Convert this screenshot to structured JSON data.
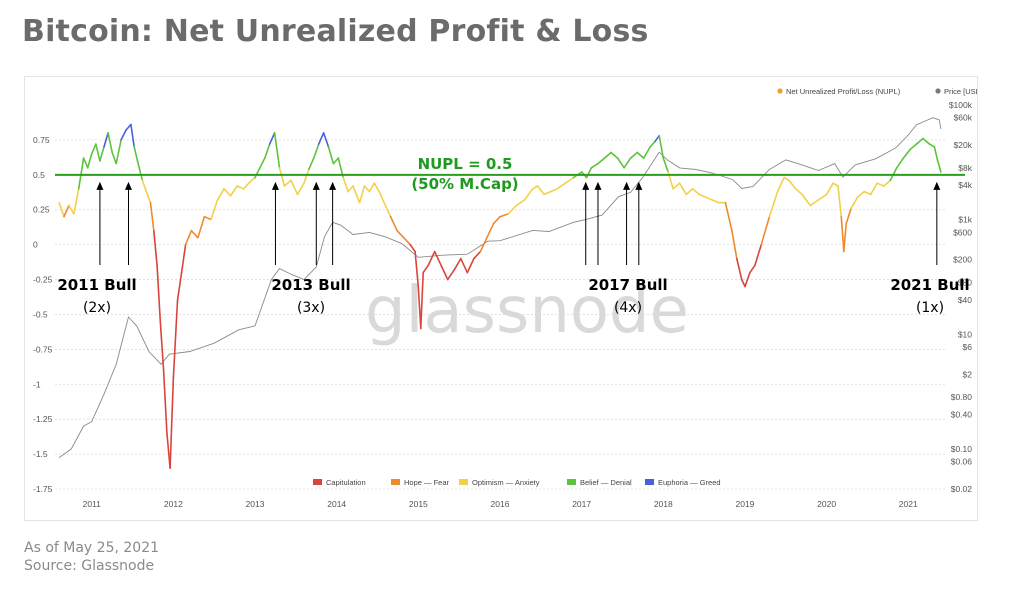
{
  "title": "Bitcoin: Net Unrealized Profit & Loss",
  "footer": {
    "date": "As of May 25, 2021",
    "source": "Source: Glassnode"
  },
  "watermark": "glassnode",
  "chart_data": {
    "type": "line",
    "legend_top": [
      {
        "label": "Net Unrealized Profit/Loss (NUPL)",
        "color": "#f39c34"
      },
      {
        "label": "Price [USD]",
        "color": "#7a7a7a"
      }
    ],
    "legend_bottom": [
      {
        "label": "Capitulation",
        "color": "#d9453b"
      },
      {
        "label": "Hope — Fear",
        "color": "#ef8a2a"
      },
      {
        "label": "Optimism — Anxiety",
        "color": "#f2d04a"
      },
      {
        "label": "Belief — Denial",
        "color": "#5cc33c"
      },
      {
        "label": "Euphoria — Greed",
        "color": "#4a5fe0"
      }
    ],
    "x_ticks": [
      "2011",
      "2012",
      "2013",
      "2014",
      "2015",
      "2016",
      "2017",
      "2018",
      "2019",
      "2020",
      "2021"
    ],
    "y_left": {
      "ticks": [
        "0.75",
        "0.5",
        "0.25",
        "0",
        "-0.25",
        "-0.5",
        "-0.75",
        "-1",
        "-1.25",
        "-1.5",
        "-1.75"
      ],
      "range": [
        -1.75,
        1.0
      ]
    },
    "y_right": {
      "scale": "log",
      "ticks": [
        "$100k",
        "$60k",
        "$20k",
        "$8k",
        "$4k",
        "$1k",
        "$600",
        "$200",
        "$80",
        "$40",
        "$10",
        "$6",
        "$2",
        "$0.80",
        "$0.40",
        "$0.10",
        "$0.06",
        "$0.02"
      ]
    },
    "reference_line": {
      "value": 0.5,
      "color": "#2a9d1f",
      "label": "NUPL = 0.5",
      "sublabel": "(50% M.Cap)"
    },
    "annotations": [
      {
        "label": "2011 Bull",
        "sub": "(2x)",
        "peaks": [
          2011.1,
          2011.45
        ]
      },
      {
        "label": "2013 Bull",
        "sub": "(3x)",
        "peaks": [
          2013.25,
          2013.75,
          2013.95
        ]
      },
      {
        "label": "2017 Bull",
        "sub": "(4x)",
        "peaks": [
          2017.05,
          2017.2,
          2017.55,
          2017.7
        ]
      },
      {
        "label": "2021 Bull",
        "sub": "(1x)",
        "peaks": [
          2021.35
        ]
      }
    ],
    "nupl_series": [
      [
        2010.6,
        0.3
      ],
      [
        2010.66,
        0.2
      ],
      [
        2010.72,
        0.28
      ],
      [
        2010.78,
        0.22
      ],
      [
        2010.84,
        0.4
      ],
      [
        2010.9,
        0.62
      ],
      [
        2010.95,
        0.55
      ],
      [
        2011.0,
        0.65
      ],
      [
        2011.05,
        0.72
      ],
      [
        2011.1,
        0.6
      ],
      [
        2011.15,
        0.7
      ],
      [
        2011.2,
        0.8
      ],
      [
        2011.25,
        0.66
      ],
      [
        2011.3,
        0.58
      ],
      [
        2011.36,
        0.75
      ],
      [
        2011.42,
        0.82
      ],
      [
        2011.48,
        0.86
      ],
      [
        2011.52,
        0.7
      ],
      [
        2011.56,
        0.6
      ],
      [
        2011.62,
        0.46
      ],
      [
        2011.68,
        0.36
      ],
      [
        2011.72,
        0.3
      ],
      [
        2011.76,
        0.1
      ],
      [
        2011.8,
        -0.15
      ],
      [
        2011.84,
        -0.55
      ],
      [
        2011.88,
        -0.9
      ],
      [
        2011.92,
        -1.35
      ],
      [
        2011.96,
        -1.6
      ],
      [
        2012.0,
        -0.95
      ],
      [
        2012.05,
        -0.4
      ],
      [
        2012.1,
        -0.2
      ],
      [
        2012.15,
        0.0
      ],
      [
        2012.22,
        0.1
      ],
      [
        2012.3,
        0.05
      ],
      [
        2012.38,
        0.2
      ],
      [
        2012.46,
        0.18
      ],
      [
        2012.54,
        0.32
      ],
      [
        2012.62,
        0.4
      ],
      [
        2012.7,
        0.35
      ],
      [
        2012.78,
        0.42
      ],
      [
        2012.86,
        0.4
      ],
      [
        2012.94,
        0.45
      ],
      [
        2013.0,
        0.48
      ],
      [
        2013.06,
        0.55
      ],
      [
        2013.12,
        0.62
      ],
      [
        2013.18,
        0.72
      ],
      [
        2013.24,
        0.8
      ],
      [
        2013.3,
        0.55
      ],
      [
        2013.36,
        0.42
      ],
      [
        2013.44,
        0.46
      ],
      [
        2013.52,
        0.36
      ],
      [
        2013.6,
        0.44
      ],
      [
        2013.66,
        0.54
      ],
      [
        2013.72,
        0.62
      ],
      [
        2013.78,
        0.72
      ],
      [
        2013.84,
        0.8
      ],
      [
        2013.9,
        0.7
      ],
      [
        2013.96,
        0.58
      ],
      [
        2014.02,
        0.62
      ],
      [
        2014.08,
        0.48
      ],
      [
        2014.14,
        0.38
      ],
      [
        2014.2,
        0.42
      ],
      [
        2014.28,
        0.3
      ],
      [
        2014.34,
        0.42
      ],
      [
        2014.4,
        0.38
      ],
      [
        2014.46,
        0.44
      ],
      [
        2014.52,
        0.38
      ],
      [
        2014.58,
        0.3
      ],
      [
        2014.66,
        0.2
      ],
      [
        2014.74,
        0.1
      ],
      [
        2014.82,
        0.05
      ],
      [
        2014.9,
        0.0
      ],
      [
        2014.96,
        -0.05
      ],
      [
        2015.0,
        -0.3
      ],
      [
        2015.03,
        -0.6
      ],
      [
        2015.06,
        -0.2
      ],
      [
        2015.12,
        -0.15
      ],
      [
        2015.2,
        -0.05
      ],
      [
        2015.28,
        -0.15
      ],
      [
        2015.36,
        -0.25
      ],
      [
        2015.44,
        -0.18
      ],
      [
        2015.52,
        -0.1
      ],
      [
        2015.6,
        -0.2
      ],
      [
        2015.68,
        -0.1
      ],
      [
        2015.76,
        -0.05
      ],
      [
        2015.84,
        0.05
      ],
      [
        2015.92,
        0.15
      ],
      [
        2016.0,
        0.2
      ],
      [
        2016.1,
        0.22
      ],
      [
        2016.2,
        0.28
      ],
      [
        2016.3,
        0.32
      ],
      [
        2016.4,
        0.4
      ],
      [
        2016.46,
        0.42
      ],
      [
        2016.54,
        0.36
      ],
      [
        2016.62,
        0.38
      ],
      [
        2016.7,
        0.4
      ],
      [
        2016.8,
        0.44
      ],
      [
        2016.9,
        0.48
      ],
      [
        2017.0,
        0.52
      ],
      [
        2017.06,
        0.48
      ],
      [
        2017.12,
        0.55
      ],
      [
        2017.2,
        0.58
      ],
      [
        2017.28,
        0.62
      ],
      [
        2017.36,
        0.66
      ],
      [
        2017.44,
        0.62
      ],
      [
        2017.52,
        0.55
      ],
      [
        2017.6,
        0.62
      ],
      [
        2017.68,
        0.66
      ],
      [
        2017.76,
        0.62
      ],
      [
        2017.84,
        0.7
      ],
      [
        2017.9,
        0.74
      ],
      [
        2017.95,
        0.78
      ],
      [
        2018.0,
        0.62
      ],
      [
        2018.06,
        0.52
      ],
      [
        2018.12,
        0.4
      ],
      [
        2018.2,
        0.44
      ],
      [
        2018.28,
        0.36
      ],
      [
        2018.36,
        0.4
      ],
      [
        2018.44,
        0.36
      ],
      [
        2018.52,
        0.34
      ],
      [
        2018.6,
        0.32
      ],
      [
        2018.68,
        0.3
      ],
      [
        2018.76,
        0.3
      ],
      [
        2018.84,
        0.1
      ],
      [
        2018.9,
        -0.1
      ],
      [
        2018.96,
        -0.25
      ],
      [
        2019.0,
        -0.3
      ],
      [
        2019.06,
        -0.2
      ],
      [
        2019.12,
        -0.15
      ],
      [
        2019.2,
        0.0
      ],
      [
        2019.3,
        0.2
      ],
      [
        2019.4,
        0.38
      ],
      [
        2019.48,
        0.48
      ],
      [
        2019.54,
        0.46
      ],
      [
        2019.62,
        0.4
      ],
      [
        2019.7,
        0.36
      ],
      [
        2019.8,
        0.28
      ],
      [
        2019.9,
        0.32
      ],
      [
        2020.0,
        0.36
      ],
      [
        2020.08,
        0.44
      ],
      [
        2020.14,
        0.42
      ],
      [
        2020.18,
        0.2
      ],
      [
        2020.21,
        -0.05
      ],
      [
        2020.24,
        0.15
      ],
      [
        2020.3,
        0.26
      ],
      [
        2020.38,
        0.34
      ],
      [
        2020.46,
        0.38
      ],
      [
        2020.54,
        0.36
      ],
      [
        2020.62,
        0.44
      ],
      [
        2020.7,
        0.42
      ],
      [
        2020.78,
        0.46
      ],
      [
        2020.86,
        0.55
      ],
      [
        2020.94,
        0.62
      ],
      [
        2021.02,
        0.68
      ],
      [
        2021.1,
        0.72
      ],
      [
        2021.18,
        0.76
      ],
      [
        2021.26,
        0.72
      ],
      [
        2021.32,
        0.7
      ],
      [
        2021.36,
        0.6
      ],
      [
        2021.4,
        0.52
      ]
    ],
    "price_series": [
      [
        2010.6,
        0.07
      ],
      [
        2010.75,
        0.1
      ],
      [
        2010.9,
        0.25
      ],
      [
        2011.0,
        0.3
      ],
      [
        2011.15,
        0.9
      ],
      [
        2011.3,
        3
      ],
      [
        2011.45,
        20
      ],
      [
        2011.55,
        14
      ],
      [
        2011.7,
        5
      ],
      [
        2011.85,
        3
      ],
      [
        2011.95,
        4.5
      ],
      [
        2012.2,
        5
      ],
      [
        2012.5,
        7
      ],
      [
        2012.8,
        12
      ],
      [
        2013.0,
        14
      ],
      [
        2013.2,
        90
      ],
      [
        2013.3,
        140
      ],
      [
        2013.45,
        110
      ],
      [
        2013.6,
        90
      ],
      [
        2013.75,
        150
      ],
      [
        2013.85,
        500
      ],
      [
        2013.95,
        900
      ],
      [
        2014.05,
        800
      ],
      [
        2014.2,
        550
      ],
      [
        2014.4,
        600
      ],
      [
        2014.6,
        500
      ],
      [
        2014.8,
        380
      ],
      [
        2015.0,
        220
      ],
      [
        2015.3,
        240
      ],
      [
        2015.6,
        250
      ],
      [
        2015.85,
        420
      ],
      [
        2016.0,
        430
      ],
      [
        2016.4,
        650
      ],
      [
        2016.6,
        620
      ],
      [
        2016.9,
        900
      ],
      [
        2017.05,
        1000
      ],
      [
        2017.25,
        1200
      ],
      [
        2017.45,
        2500
      ],
      [
        2017.6,
        3000
      ],
      [
        2017.75,
        5500
      ],
      [
        2017.95,
        15000
      ],
      [
        2018.05,
        11000
      ],
      [
        2018.2,
        8000
      ],
      [
        2018.4,
        7500
      ],
      [
        2018.6,
        6500
      ],
      [
        2018.85,
        5000
      ],
      [
        2018.96,
        3500
      ],
      [
        2019.1,
        3800
      ],
      [
        2019.3,
        7500
      ],
      [
        2019.5,
        11000
      ],
      [
        2019.7,
        9000
      ],
      [
        2019.9,
        7200
      ],
      [
        2020.1,
        9500
      ],
      [
        2020.2,
        5500
      ],
      [
        2020.35,
        9000
      ],
      [
        2020.6,
        11500
      ],
      [
        2020.85,
        18000
      ],
      [
        2021.0,
        30000
      ],
      [
        2021.1,
        45000
      ],
      [
        2021.3,
        60000
      ],
      [
        2021.38,
        55000
      ],
      [
        2021.4,
        38000
      ]
    ]
  }
}
